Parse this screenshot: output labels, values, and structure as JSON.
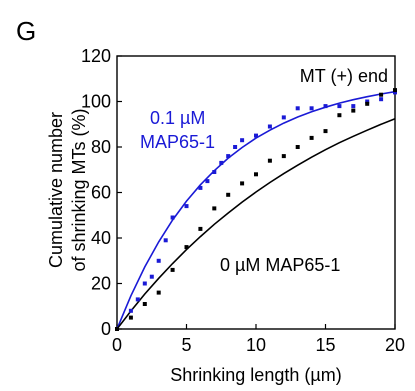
{
  "panel_label": "G",
  "chart_data": {
    "type": "scatter",
    "title": "",
    "xlabel": "Shrinking length (µm)",
    "ylabel_line1": "Cumulative number",
    "ylabel_line2": "of shrinking MTs (%)",
    "xlim": [
      0,
      20
    ],
    "ylim": [
      0,
      120
    ],
    "x_ticks": [
      0,
      5,
      10,
      15,
      20
    ],
    "y_ticks": [
      0,
      20,
      40,
      60,
      80,
      100,
      120
    ],
    "x_tick_labels": [
      "0",
      "5",
      "10",
      "15",
      "20"
    ],
    "y_tick_labels": [
      "0",
      "20",
      "40",
      "60",
      "80",
      "100",
      "120"
    ],
    "grid": false,
    "annotation": "MT (+) end",
    "series": [
      {
        "name": "0.1 µM MAP65-1",
        "name_line1": "0.1 µM",
        "name_line2": "MAP65-1",
        "color": "#1a1ad6",
        "points": [
          [
            0,
            0
          ],
          [
            1,
            8
          ],
          [
            1.5,
            13
          ],
          [
            2,
            20
          ],
          [
            2.5,
            23
          ],
          [
            3,
            30
          ],
          [
            3.5,
            39
          ],
          [
            4,
            49
          ],
          [
            5,
            54
          ],
          [
            6,
            62
          ],
          [
            6.5,
            65
          ],
          [
            7,
            69
          ],
          [
            7.5,
            73
          ],
          [
            8,
            76
          ],
          [
            8.5,
            80
          ],
          [
            9,
            83
          ],
          [
            10,
            85
          ],
          [
            11,
            89
          ],
          [
            12,
            93
          ],
          [
            13,
            97
          ],
          [
            14,
            97
          ],
          [
            15,
            98
          ],
          [
            16,
            98
          ],
          [
            17,
            98
          ],
          [
            18,
            100
          ],
          [
            19,
            101
          ],
          [
            20,
            104
          ]
        ],
        "fit": [
          [
            0,
            0
          ],
          [
            1,
            14.6
          ],
          [
            2,
            27.3
          ],
          [
            3,
            38.3
          ],
          [
            4,
            47.9
          ],
          [
            5,
            56.2
          ],
          [
            6,
            63.4
          ],
          [
            7,
            69.6
          ],
          [
            8,
            75.1
          ],
          [
            9,
            79.8
          ],
          [
            10,
            83.9
          ],
          [
            11,
            87.4
          ],
          [
            12,
            90.5
          ],
          [
            13,
            93.2
          ],
          [
            14,
            95.5
          ],
          [
            15,
            97.5
          ],
          [
            16,
            99.3
          ],
          [
            17,
            100.8
          ],
          [
            18,
            102.1
          ],
          [
            19,
            103.3
          ],
          [
            20,
            104.3
          ]
        ]
      },
      {
        "name": "0 µM MAP65-1",
        "color": "#000000",
        "points": [
          [
            0,
            0
          ],
          [
            1,
            5
          ],
          [
            2,
            11
          ],
          [
            3,
            16
          ],
          [
            4,
            26
          ],
          [
            5,
            36
          ],
          [
            6,
            44
          ],
          [
            7,
            53
          ],
          [
            8,
            59
          ],
          [
            9,
            64
          ],
          [
            10,
            68
          ],
          [
            11,
            74
          ],
          [
            12,
            76
          ],
          [
            13,
            80
          ],
          [
            14,
            84
          ],
          [
            15,
            87
          ],
          [
            16,
            94
          ],
          [
            17,
            96
          ],
          [
            18,
            99
          ],
          [
            19,
            103
          ],
          [
            20,
            105
          ]
        ],
        "fit": [
          [
            0,
            0
          ],
          [
            1,
            7.9
          ],
          [
            2,
            15.4
          ],
          [
            3,
            22.3
          ],
          [
            4,
            28.8
          ],
          [
            5,
            34.9
          ],
          [
            6,
            40.6
          ],
          [
            7,
            46.0
          ],
          [
            8,
            51.0
          ],
          [
            9,
            55.8
          ],
          [
            10,
            60.2
          ],
          [
            11,
            64.4
          ],
          [
            12,
            68.3
          ],
          [
            13,
            72.0
          ],
          [
            14,
            75.5
          ],
          [
            15,
            78.8
          ],
          [
            16,
            81.9
          ],
          [
            17,
            84.7
          ],
          [
            18,
            87.4
          ],
          [
            19,
            90.0
          ],
          [
            20,
            92.4
          ],
          [
            21,
            94.6
          ]
        ]
      }
    ]
  }
}
